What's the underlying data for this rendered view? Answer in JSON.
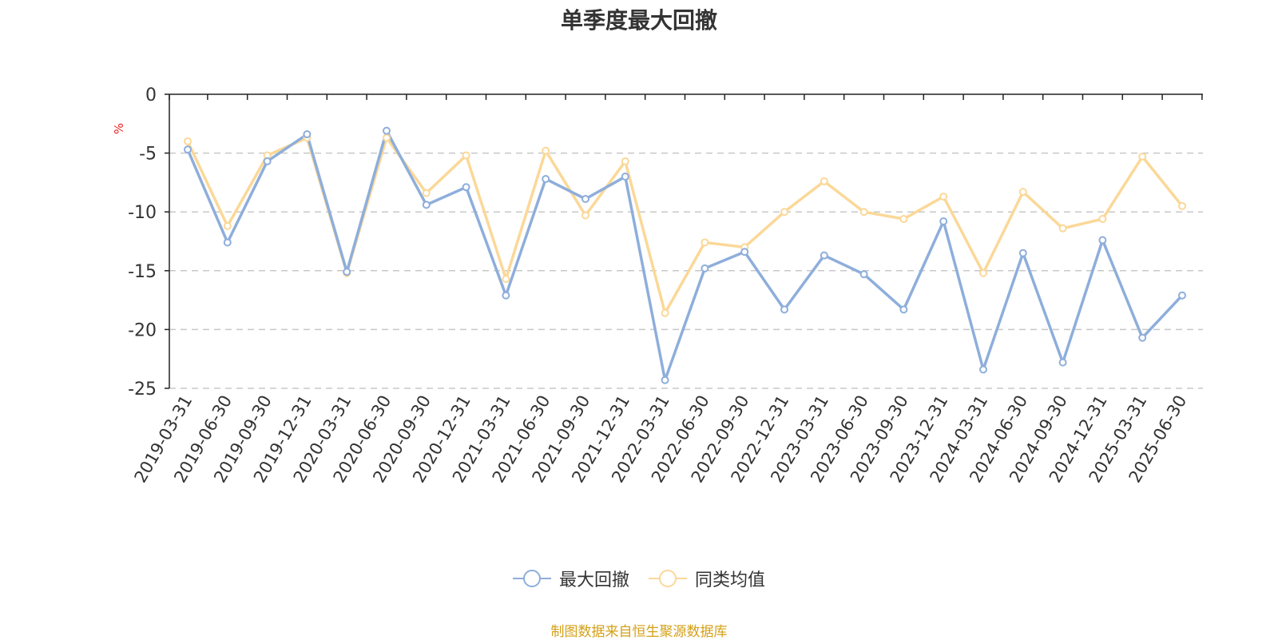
{
  "title": "单季度最大回撤",
  "unit": "%",
  "source": "制图数据来自恒生聚源数据库",
  "colors": {
    "series1": "#8eaedb",
    "series2": "#fbd898",
    "grid": "#c8c8c8",
    "axis": "#222222",
    "text": "#333333"
  },
  "chart_data": {
    "type": "line",
    "title": "单季度最大回撤",
    "ylabel": "%",
    "ylim": [
      -25,
      0
    ],
    "yticks": [
      0,
      -5,
      -10,
      -15,
      -20,
      -25
    ],
    "grid": true,
    "legend_position": "bottom",
    "categories": [
      "2019-03-31",
      "2019-06-30",
      "2019-09-30",
      "2019-12-31",
      "2020-03-31",
      "2020-06-30",
      "2020-09-30",
      "2020-12-31",
      "2021-03-31",
      "2021-06-30",
      "2021-09-30",
      "2021-12-31",
      "2022-03-31",
      "2022-06-30",
      "2022-09-30",
      "2022-12-31",
      "2023-03-31",
      "2023-06-30",
      "2023-09-30",
      "2023-12-31",
      "2024-03-31",
      "2024-06-30",
      "2024-09-30",
      "2024-12-31",
      "2025-03-31",
      "2025-06-30"
    ],
    "series": [
      {
        "name": "最大回撤",
        "values": [
          -4.7,
          -12.6,
          -5.7,
          -3.4,
          -15.1,
          -3.1,
          -9.4,
          -7.9,
          -17.1,
          -7.2,
          -8.9,
          -7.0,
          -24.3,
          -14.8,
          -13.4,
          -18.3,
          -13.7,
          -15.3,
          -18.3,
          -10.8,
          -23.4,
          -13.5,
          -22.8,
          -12.4,
          -20.7,
          -17.1
        ]
      },
      {
        "name": "同类均值",
        "values": [
          -4.0,
          -11.2,
          -5.2,
          -3.7,
          -15.2,
          -3.7,
          -8.4,
          -5.2,
          -15.7,
          -4.8,
          -10.3,
          -5.7,
          -18.6,
          -12.6,
          -13.0,
          -10.0,
          -7.4,
          -10.0,
          -10.6,
          -8.7,
          -15.2,
          -8.3,
          -11.4,
          -10.6,
          -5.3,
          -9.5
        ]
      }
    ]
  }
}
